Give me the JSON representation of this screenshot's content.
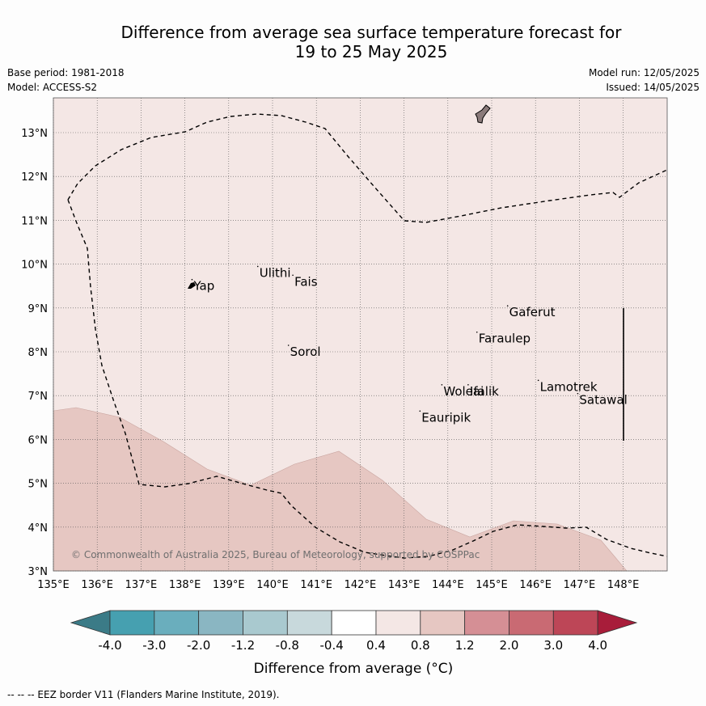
{
  "title_line1": "Difference from average sea surface temperature forecast for",
  "title_line2": "19 to 25 May 2025",
  "base_period": "Base period: 1981-2018",
  "model": "Model: ACCESS-S2",
  "model_run": "Model run: 12/05/2025",
  "issued": "Issued: 14/05/2025",
  "copyright": "© Commonwealth of Australia 2025, Bureau of Meteorology, supported by COSPPac",
  "x_ticks": [
    "135°E",
    "136°E",
    "137°E",
    "138°E",
    "139°E",
    "140°E",
    "141°E",
    "142°E",
    "143°E",
    "144°E",
    "145°E",
    "146°E",
    "147°E",
    "148°E"
  ],
  "y_ticks": [
    "3°N",
    "4°N",
    "5°N",
    "6°N",
    "7°N",
    "8°N",
    "9°N",
    "10°N",
    "11°N",
    "12°N",
    "13°N"
  ],
  "places": [
    {
      "name": "Yap",
      "lon": 138.2,
      "lat": 9.5
    },
    {
      "name": "Ulithi",
      "lon": 139.7,
      "lat": 9.8
    },
    {
      "name": "Fais",
      "lon": 140.5,
      "lat": 9.6
    },
    {
      "name": "Sorol",
      "lon": 140.4,
      "lat": 8.0
    },
    {
      "name": "Gaferut",
      "lon": 145.4,
      "lat": 8.9
    },
    {
      "name": "Faraulep",
      "lon": 144.7,
      "lat": 8.3
    },
    {
      "name": "Woleai",
      "lon": 143.9,
      "lat": 7.1
    },
    {
      "name": "Ifalik",
      "lon": 144.5,
      "lat": 7.1
    },
    {
      "name": "Lamotrek",
      "lon": 146.1,
      "lat": 7.2
    },
    {
      "name": "Satawal",
      "lon": 147.0,
      "lat": 6.9
    },
    {
      "name": "Eauripik",
      "lon": 143.4,
      "lat": 6.5
    }
  ],
  "colorbar": {
    "ticks": [
      "-4.0",
      "-3.0",
      "-2.0",
      "-1.2",
      "-0.8",
      "-0.4",
      "0.4",
      "0.8",
      "1.2",
      "2.0",
      "3.0",
      "4.0"
    ],
    "colors": [
      "#3b7b87",
      "#46a0b0",
      "#6aaebd",
      "#8ab6c2",
      "#a9c9cf",
      "#c8d9dc",
      "#ffffff",
      "#f4e7e5",
      "#e6c7c2",
      "#d58f95",
      "#c96a73",
      "#bd4657",
      "#a81d3a"
    ],
    "label": "Difference from average (°C)"
  },
  "footer": "--  --  -- EEZ border V11 (Flanders Marine Institute, 2019)."
}
